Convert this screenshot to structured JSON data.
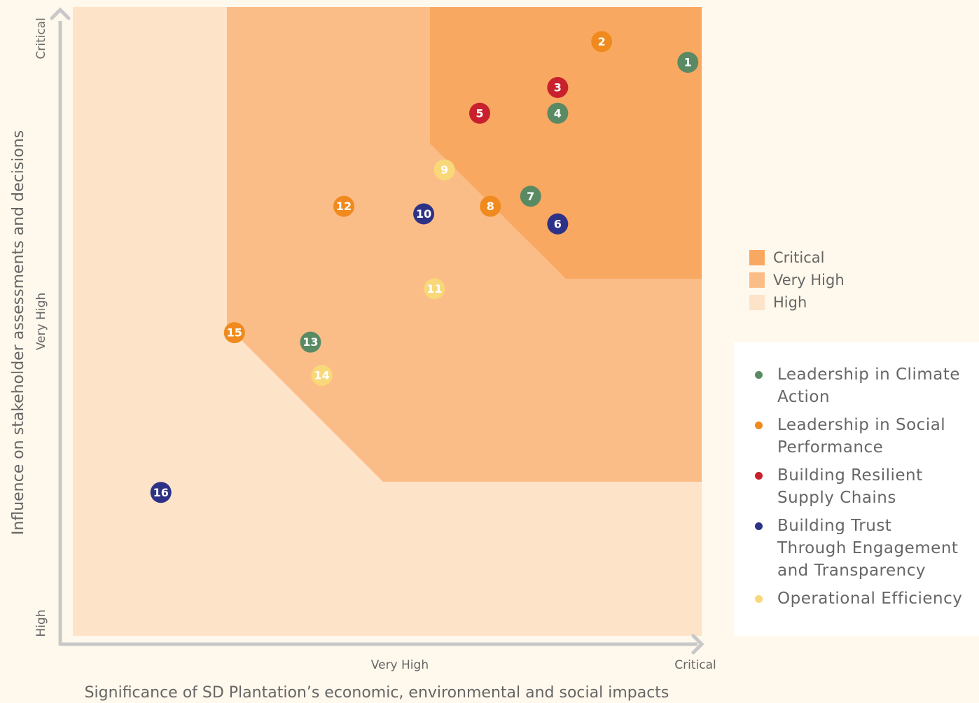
{
  "chart_data": {
    "type": "scatter",
    "x_label": "Significance of SD Plantation’s economic, environmental and social impacts",
    "y_label": "Influence on stakeholder assessments and decisions",
    "xlim": [
      0,
      100
    ],
    "ylim": [
      0,
      100
    ],
    "xticks": [
      {
        "value": 52,
        "label": "Very High"
      },
      {
        "value": 99,
        "label": "Critical"
      }
    ],
    "yticks": [
      {
        "value": 2,
        "label": "High"
      },
      {
        "value": 50,
        "label": "Very High"
      },
      {
        "value": 95,
        "label": "Critical"
      }
    ],
    "zones": [
      {
        "name": "Critical",
        "color": "#f9a862"
      },
      {
        "name": "Very High",
        "color": "#fbbd88"
      },
      {
        "name": "High",
        "color": "#fde3c8"
      }
    ],
    "series": [
      {
        "name": "Leadership in Climate Action",
        "color": "#5a8a64",
        "ids": [
          1,
          4,
          7,
          13
        ],
        "x": [
          97.8,
          77.1,
          72.8,
          37.8
        ],
        "values": [
          91.2,
          83.1,
          69.9,
          46.7
        ]
      },
      {
        "name": "Leadership in Social Performance",
        "color": "#f08a1e",
        "ids": [
          2,
          8,
          12,
          15
        ],
        "x": [
          84.1,
          66.4,
          43.1,
          25.7
        ],
        "values": [
          94.5,
          68.3,
          68.3,
          48.2
        ]
      },
      {
        "name": "Building Resilient Supply Chains",
        "color": "#c8202c",
        "ids": [
          3,
          5
        ],
        "x": [
          77.1,
          64.7
        ],
        "values": [
          87.2,
          83.1
        ]
      },
      {
        "name": "Building Trust Through Engagement and Transparency",
        "color": "#2e3287",
        "ids": [
          6,
          10,
          16
        ],
        "x": [
          77.1,
          55.8,
          14.0
        ],
        "values": [
          65.5,
          67.1,
          22.8
        ]
      },
      {
        "name": "Operational Efficiency",
        "color": "#f8d878",
        "ids": [
          9,
          11,
          14
        ],
        "x": [
          59.1,
          57.5,
          39.6
        ],
        "values": [
          74.1,
          55.2,
          41.4
        ]
      }
    ]
  }
}
